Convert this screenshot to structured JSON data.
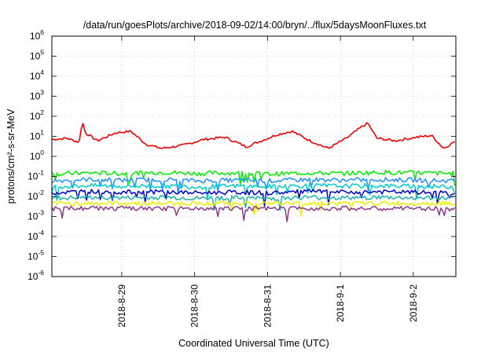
{
  "chart_data": {
    "type": "line",
    "title": "/data/run/goesPlots/archive/2018-09-02/14:00/bryn/../flux/5daysMoonFluxes.txt",
    "xlabel": "Coordinated Universal Time (UTC)",
    "ylabel": "protons/cm²-s-sr-MeV",
    "scale_y": "log",
    "grid": true,
    "legend": "none",
    "xlim": [
      "2018-08-28T01:00",
      "2018-09-02T14:00"
    ],
    "ylim": [
      1e-06,
      1000000.0
    ],
    "x_ticks": [
      "2018-8-29",
      "2018-8-30",
      "2018-8-31",
      "2018-9-1",
      "2018-9-2"
    ],
    "y_ticks": [
      {
        "base": "10",
        "exp": "-6"
      },
      {
        "base": "10",
        "exp": "-5"
      },
      {
        "base": "10",
        "exp": "-4"
      },
      {
        "base": "10",
        "exp": "-3"
      },
      {
        "base": "10",
        "exp": "-2"
      },
      {
        "base": "10",
        "exp": "-1"
      },
      {
        "base": "10",
        "exp": "0"
      },
      {
        "base": "10",
        "exp": "1"
      },
      {
        "base": "10",
        "exp": "2"
      },
      {
        "base": "10",
        "exp": "3"
      },
      {
        "base": "10",
        "exp": "4"
      },
      {
        "base": "10",
        "exp": "5"
      },
      {
        "base": "10",
        "exp": "6"
      }
    ],
    "series": [
      {
        "color": "#ee0000",
        "x": [
          "2018-08-28T01:00",
          "2018-08-28T06:00",
          "2018-08-28T10:00",
          "2018-08-28T11:00",
          "2018-08-28T12:00",
          "2018-08-28T16:00",
          "2018-08-28T22:00",
          "2018-08-29T03:00",
          "2018-08-29T08:00",
          "2018-08-29T13:00",
          "2018-08-29T20:00",
          "2018-08-30T03:00",
          "2018-08-30T10:00",
          "2018-08-30T17:00",
          "2018-08-30T22:00",
          "2018-08-31T03:00",
          "2018-08-31T08:00",
          "2018-08-31T14:00",
          "2018-08-31T20:00",
          "2018-09-01T02:00",
          "2018-09-01T07:00",
          "2018-09-01T09:00",
          "2018-09-01T12:00",
          "2018-09-01T18:00",
          "2018-09-02T01:00",
          "2018-09-02T06:00",
          "2018-09-02T10:00",
          "2018-09-02T14:00"
        ],
        "y": [
          7,
          8,
          5,
          60,
          15,
          6,
          15,
          18,
          4,
          2.5,
          3.5,
          7,
          9,
          3,
          6,
          12,
          18,
          6,
          2.5,
          8,
          30,
          45,
          8,
          6,
          9,
          11,
          2.5,
          6
        ]
      },
      {
        "color": "#00ee00",
        "x": [
          "2018-08-28T01:00",
          "2018-08-28T13:00",
          "2018-08-29T01:00",
          "2018-08-29T13:00",
          "2018-08-30T01:00",
          "2018-08-30T13:00",
          "2018-08-31T01:00",
          "2018-08-31T13:00",
          "2018-09-01T01:00",
          "2018-09-01T13:00",
          "2018-09-02T01:00",
          "2018-09-02T14:00"
        ],
        "y": [
          0.13,
          0.15,
          0.14,
          0.16,
          0.14,
          0.15,
          0.13,
          0.15,
          0.14,
          0.16,
          0.15,
          0.14
        ]
      },
      {
        "color": "#1e90ff",
        "x": [
          "2018-08-28T01:00",
          "2018-08-28T13:00",
          "2018-08-29T01:00",
          "2018-08-29T13:00",
          "2018-08-30T01:00",
          "2018-08-30T13:00",
          "2018-08-31T01:00",
          "2018-08-31T13:00",
          "2018-09-01T01:00",
          "2018-09-01T13:00",
          "2018-09-02T01:00",
          "2018-09-02T14:00"
        ],
        "y": [
          0.06,
          0.07,
          0.065,
          0.07,
          0.06,
          0.065,
          0.06,
          0.07,
          0.065,
          0.07,
          0.065,
          0.06
        ]
      },
      {
        "color": "#00cdcd",
        "x": [
          "2018-08-28T01:00",
          "2018-08-28T13:00",
          "2018-08-29T01:00",
          "2018-08-29T13:00",
          "2018-08-30T01:00",
          "2018-08-30T13:00",
          "2018-08-31T01:00",
          "2018-08-31T13:00",
          "2018-09-01T01:00",
          "2018-09-01T13:00",
          "2018-09-02T01:00",
          "2018-09-02T14:00"
        ],
        "y": [
          0.03,
          0.035,
          0.032,
          0.034,
          0.03,
          0.033,
          0.031,
          0.035,
          0.033,
          0.034,
          0.032,
          0.03
        ]
      },
      {
        "color": "#0000cd",
        "x": [
          "2018-08-28T01:00",
          "2018-08-28T13:00",
          "2018-08-29T01:00",
          "2018-08-29T13:00",
          "2018-08-30T01:00",
          "2018-08-30T13:00",
          "2018-08-31T01:00",
          "2018-08-31T13:00",
          "2018-09-01T01:00",
          "2018-09-01T13:00",
          "2018-09-02T01:00",
          "2018-09-02T14:00"
        ],
        "y": [
          0.015,
          0.018,
          0.016,
          0.017,
          0.015,
          0.016,
          0.015,
          0.018,
          0.016,
          0.017,
          0.016,
          0.015
        ]
      },
      {
        "color": "#20b2aa",
        "x": [
          "2018-08-28T01:00",
          "2018-08-28T13:00",
          "2018-08-29T01:00",
          "2018-08-29T13:00",
          "2018-08-30T01:00",
          "2018-08-30T13:00",
          "2018-08-31T01:00",
          "2018-08-31T13:00",
          "2018-09-01T01:00",
          "2018-09-01T13:00",
          "2018-09-02T01:00",
          "2018-09-02T14:00"
        ],
        "y": [
          0.008,
          0.009,
          0.0085,
          0.009,
          0.008,
          0.0085,
          0.008,
          0.009,
          0.0085,
          0.009,
          0.0085,
          0.008
        ]
      },
      {
        "color": "#eeee00",
        "x": [
          "2018-08-28T01:00",
          "2018-08-28T13:00",
          "2018-08-29T01:00",
          "2018-08-29T13:00",
          "2018-08-30T01:00",
          "2018-08-30T13:00",
          "2018-08-31T01:00",
          "2018-08-31T13:00",
          "2018-09-01T01:00",
          "2018-09-01T13:00",
          "2018-09-02T01:00",
          "2018-09-02T14:00"
        ],
        "y": [
          0.0045,
          0.0045,
          0.0046,
          0.0045,
          0.0045,
          0.0046,
          0.0045,
          0.0045,
          0.0046,
          0.0045,
          0.0045,
          0.0046
        ]
      },
      {
        "color": "#8b3a8b",
        "x": [
          "2018-08-28T01:00",
          "2018-08-28T13:00",
          "2018-08-29T01:00",
          "2018-08-29T13:00",
          "2018-08-30T01:00",
          "2018-08-30T13:00",
          "2018-08-31T01:00",
          "2018-08-31T13:00",
          "2018-09-01T01:00",
          "2018-09-01T13:00",
          "2018-09-02T01:00",
          "2018-09-02T14:00"
        ],
        "y": [
          0.0024,
          0.0026,
          0.0025,
          0.0024,
          0.0025,
          0.0026,
          0.0024,
          0.0025,
          0.0026,
          0.0024,
          0.0025,
          0.0024
        ]
      }
    ]
  }
}
